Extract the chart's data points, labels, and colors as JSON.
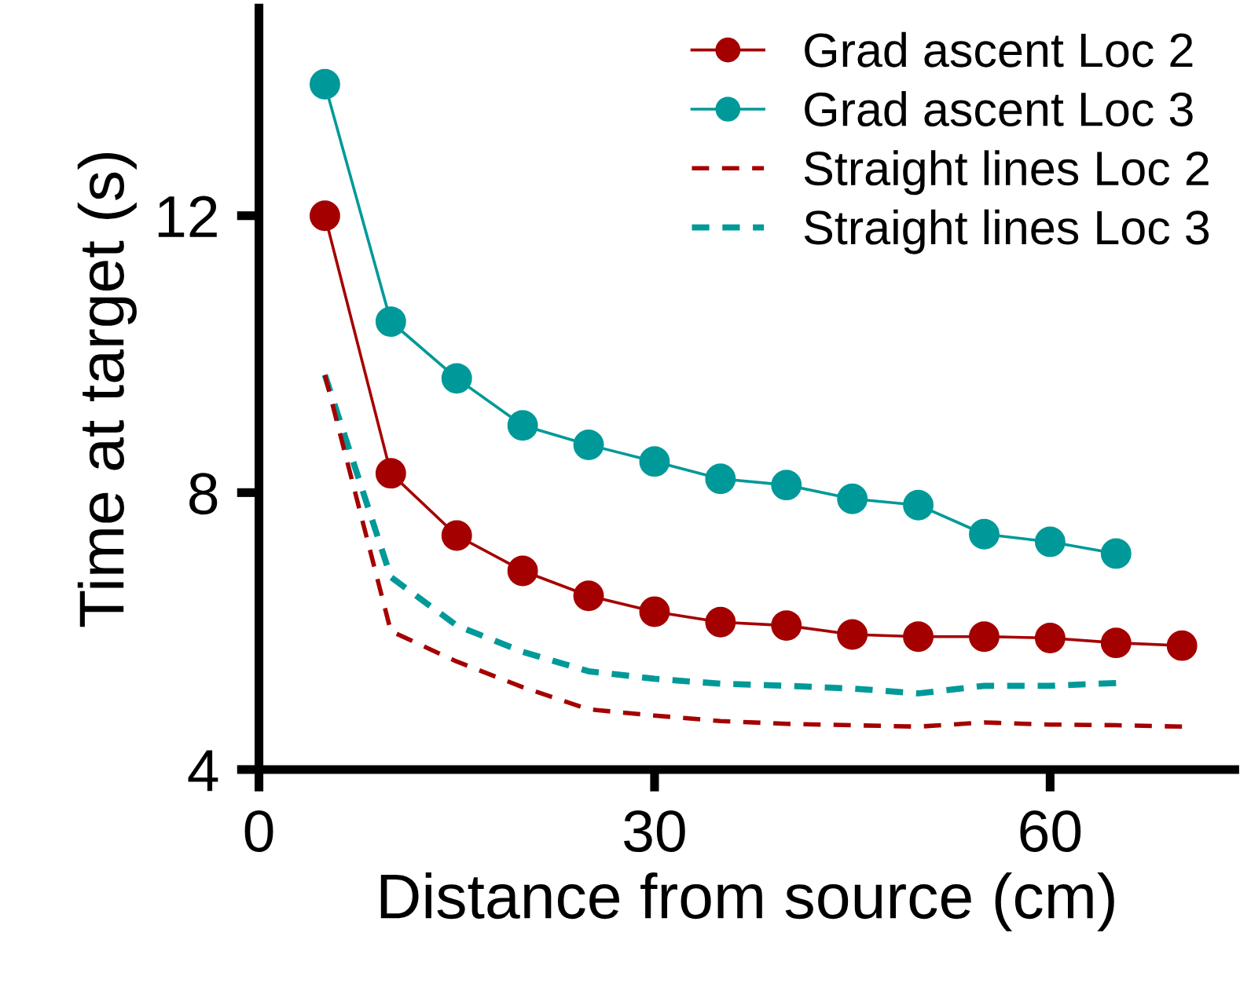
{
  "chart_data": {
    "type": "line",
    "xlabel": "Distance from source (cm)",
    "ylabel": "Time at target (s)",
    "x": [
      5,
      10,
      15,
      20,
      25,
      30,
      35,
      40,
      45,
      50,
      55,
      60,
      65,
      70
    ],
    "series": [
      {
        "name": "Grad ascent Loc 2",
        "color": "#a50000",
        "marker": "circle",
        "line_style": "solid",
        "values": [
          12.0,
          8.28,
          7.38,
          6.87,
          6.51,
          6.28,
          6.13,
          6.08,
          5.95,
          5.92,
          5.92,
          5.9,
          5.83,
          5.79
        ]
      },
      {
        "name": "Grad ascent Loc 3",
        "color": "#009999",
        "marker": "circle",
        "line_style": "solid",
        "values": [
          13.9,
          10.47,
          9.65,
          8.97,
          8.69,
          8.45,
          8.2,
          8.11,
          7.91,
          7.82,
          7.4,
          7.29,
          7.12,
          null
        ]
      },
      {
        "name": "Straight lines Loc 2",
        "color": "#a50000",
        "marker": "none",
        "line_style": "dashed",
        "values": [
          9.7,
          6.0,
          5.56,
          5.19,
          4.87,
          4.78,
          4.7,
          4.66,
          4.64,
          4.62,
          4.68,
          4.65,
          4.64,
          4.62
        ]
      },
      {
        "name": "Straight lines Loc 3",
        "color": "#009999",
        "marker": "none",
        "line_style": "dashed",
        "values": [
          9.7,
          6.78,
          6.08,
          5.7,
          5.42,
          5.31,
          5.24,
          5.21,
          5.17,
          5.1,
          5.21,
          5.21,
          5.25,
          null
        ]
      }
    ],
    "xlim": [
      0,
      74
    ],
    "xticks": [
      0,
      30,
      60
    ],
    "ylim": [
      4,
      15
    ],
    "yticks": [
      4,
      8,
      12
    ],
    "grid": false,
    "legend": "top right"
  }
}
